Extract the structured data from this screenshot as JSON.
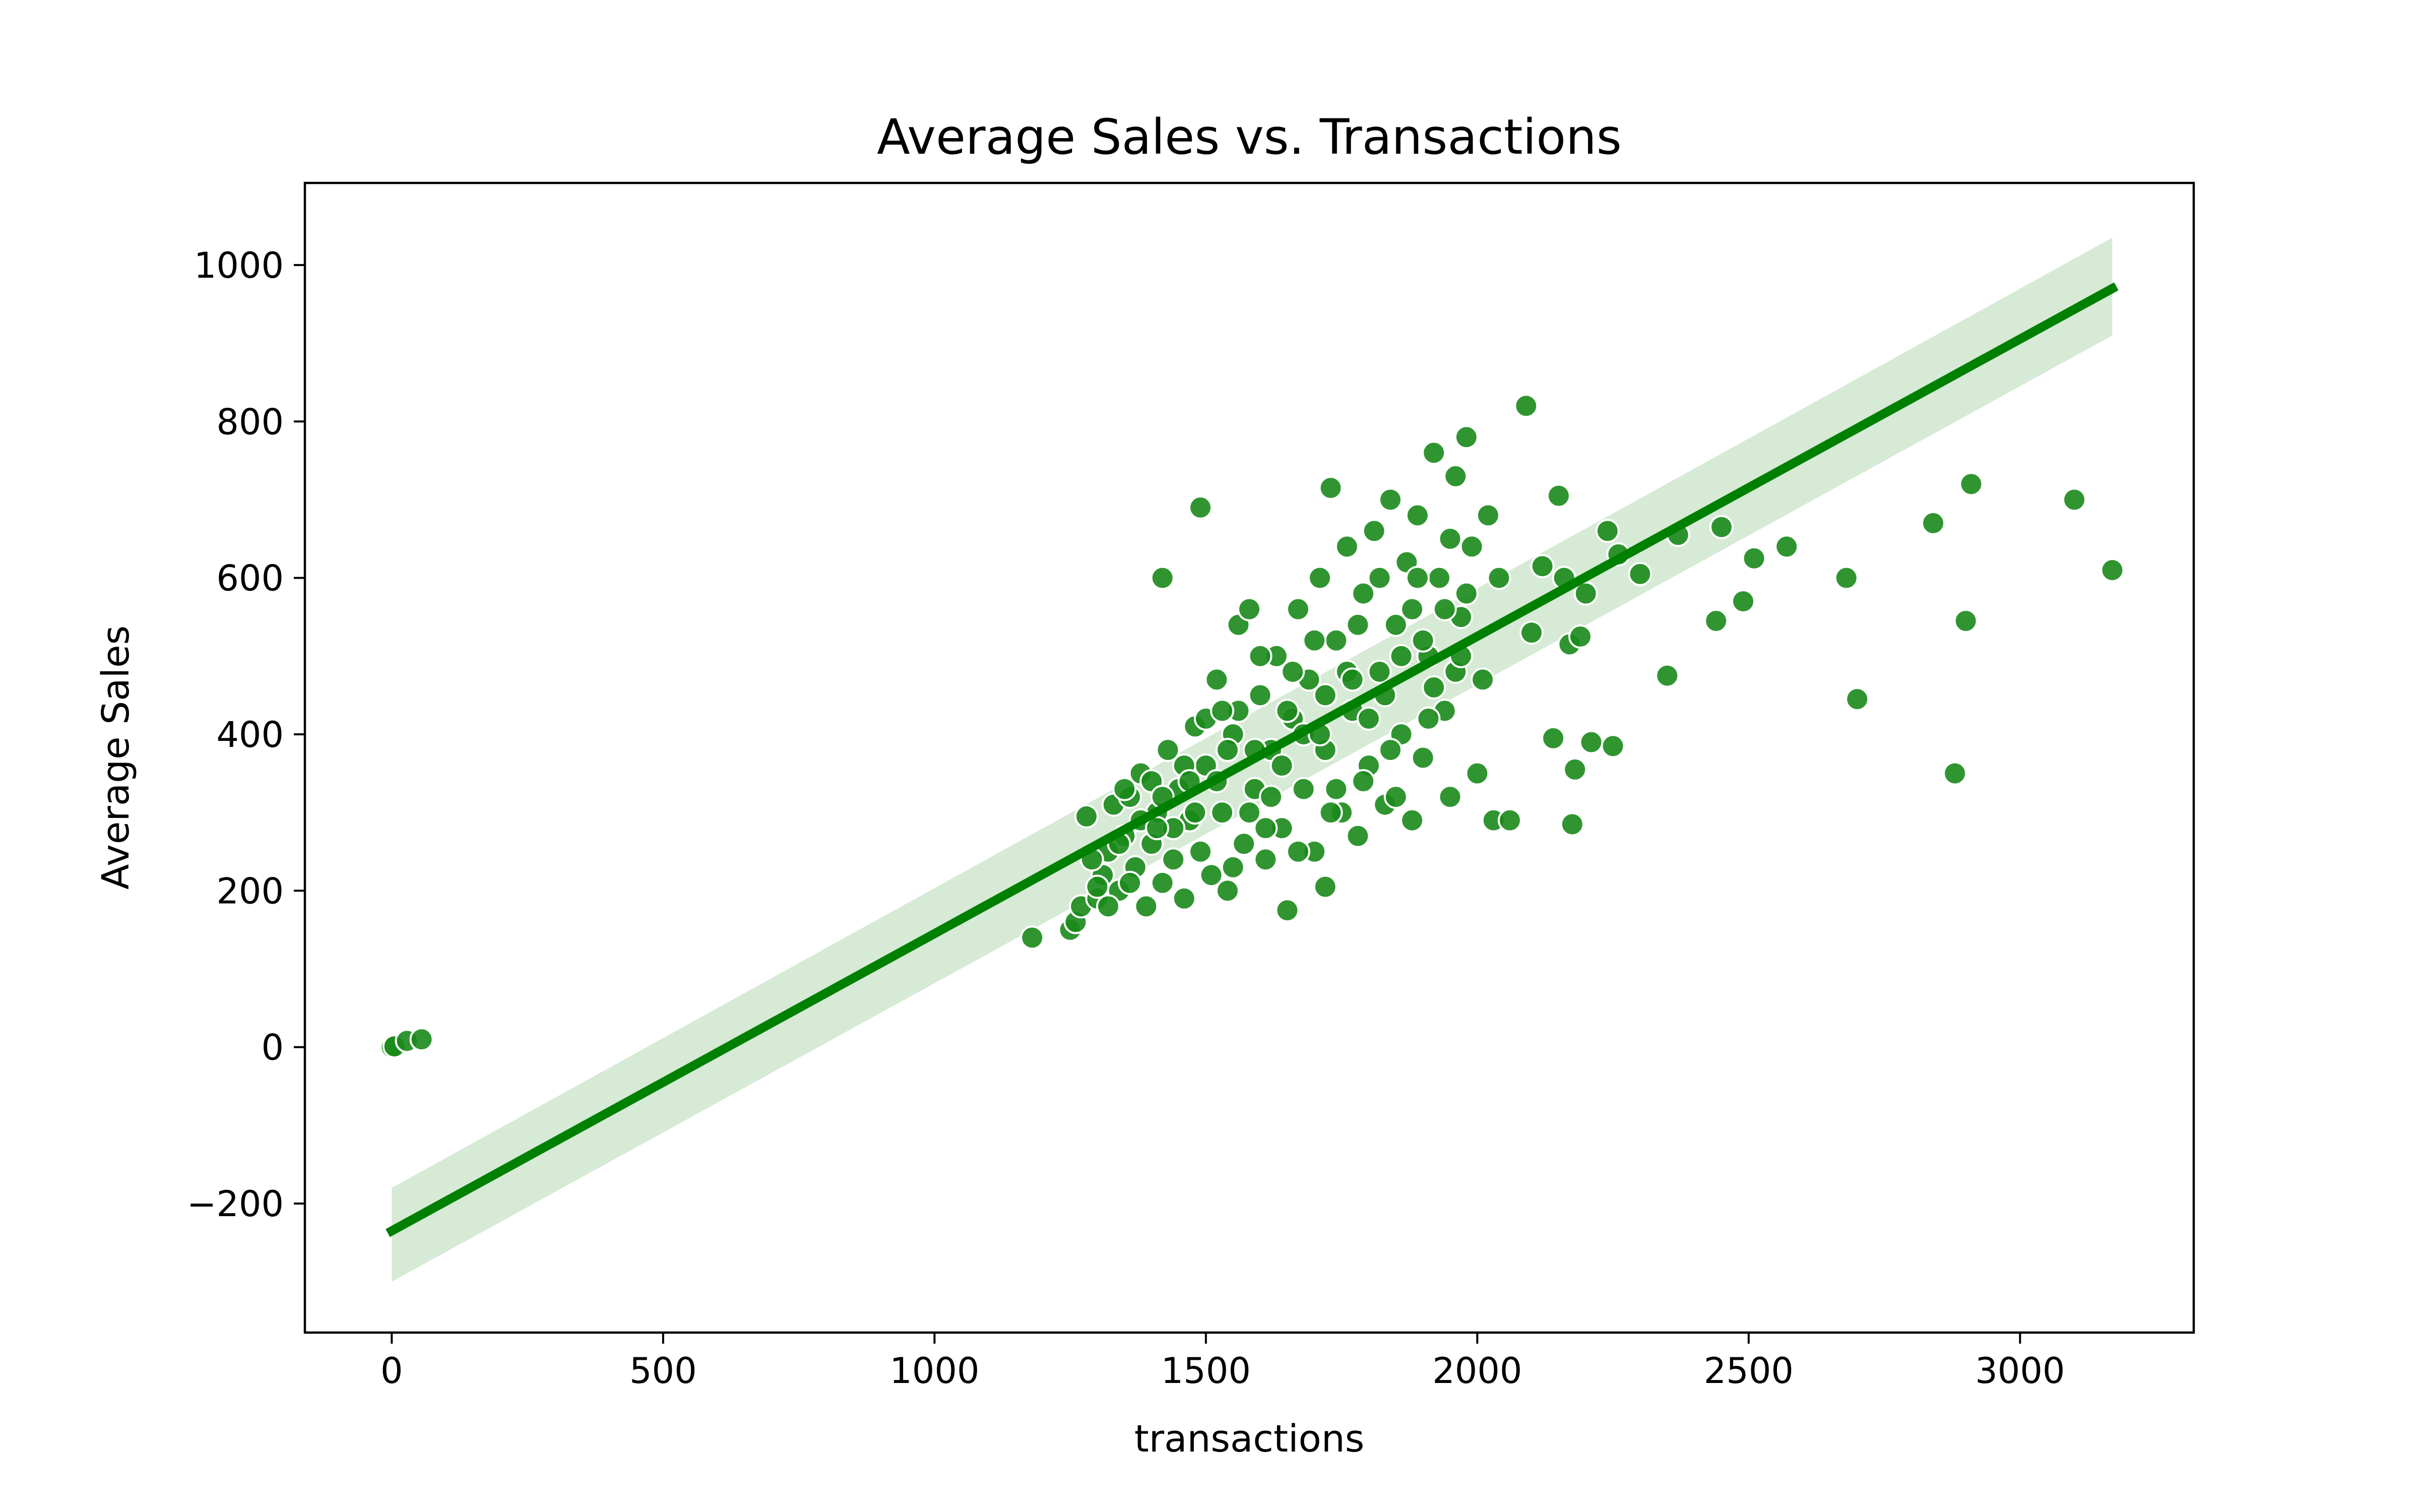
{
  "chart_data": {
    "type": "scatter",
    "title": "Average Sales vs. Transactions",
    "xlabel": "transactions",
    "ylabel": "Average Sales",
    "xlim": [
      -160,
      3320
    ],
    "ylim": [
      -365,
      1105
    ],
    "xticks": [
      0,
      500,
      1000,
      1500,
      2000,
      2500,
      3000
    ],
    "yticks": [
      -200,
      0,
      200,
      400,
      600,
      800,
      1000
    ],
    "xtick_labels": [
      "0",
      "500",
      "1000",
      "1500",
      "2000",
      "2500",
      "3000"
    ],
    "ytick_labels": [
      "−200",
      "0",
      "200",
      "400",
      "600",
      "800",
      "1000"
    ],
    "grid": false,
    "legend": "none",
    "colors": {
      "points": "#1a8a1a",
      "point_edge": "#ffffff",
      "line": "#008000",
      "band": "#d6ead6"
    },
    "regression": {
      "x": [
        0,
        3170
      ],
      "y": [
        -235,
        970
      ],
      "ci_upper": [
        -180,
        1035
      ],
      "ci_lower": [
        -300,
        910
      ]
    },
    "points": [
      [
        0,
        0
      ],
      [
        5,
        1
      ],
      [
        28,
        8
      ],
      [
        55,
        10
      ],
      [
        1180,
        140
      ],
      [
        1250,
        150
      ],
      [
        1260,
        160
      ],
      [
        1270,
        180
      ],
      [
        1280,
        295
      ],
      [
        1300,
        190
      ],
      [
        1310,
        220
      ],
      [
        1320,
        250
      ],
      [
        1330,
        310
      ],
      [
        1340,
        200
      ],
      [
        1350,
        270
      ],
      [
        1360,
        320
      ],
      [
        1370,
        230
      ],
      [
        1380,
        350
      ],
      [
        1390,
        180
      ],
      [
        1400,
        260
      ],
      [
        1410,
        300
      ],
      [
        1420,
        600
      ],
      [
        1420,
        210
      ],
      [
        1430,
        380
      ],
      [
        1440,
        240
      ],
      [
        1450,
        330
      ],
      [
        1460,
        190
      ],
      [
        1470,
        290
      ],
      [
        1480,
        410
      ],
      [
        1490,
        690
      ],
      [
        1490,
        250
      ],
      [
        1500,
        360
      ],
      [
        1510,
        220
      ],
      [
        1520,
        470
      ],
      [
        1530,
        300
      ],
      [
        1540,
        200
      ],
      [
        1550,
        400
      ],
      [
        1560,
        540
      ],
      [
        1570,
        260
      ],
      [
        1580,
        560
      ],
      [
        1590,
        330
      ],
      [
        1600,
        450
      ],
      [
        1610,
        240
      ],
      [
        1620,
        380
      ],
      [
        1630,
        500
      ],
      [
        1640,
        280
      ],
      [
        1650,
        175
      ],
      [
        1660,
        420
      ],
      [
        1670,
        560
      ],
      [
        1680,
        330
      ],
      [
        1690,
        470
      ],
      [
        1700,
        250
      ],
      [
        1710,
        600
      ],
      [
        1720,
        205
      ],
      [
        1720,
        380
      ],
      [
        1730,
        715
      ],
      [
        1740,
        520
      ],
      [
        1750,
        300
      ],
      [
        1760,
        640
      ],
      [
        1770,
        430
      ],
      [
        1780,
        270
      ],
      [
        1790,
        580
      ],
      [
        1800,
        360
      ],
      [
        1810,
        660
      ],
      [
        1820,
        480
      ],
      [
        1830,
        310
      ],
      [
        1840,
        700
      ],
      [
        1850,
        540
      ],
      [
        1860,
        400
      ],
      [
        1870,
        620
      ],
      [
        1880,
        290
      ],
      [
        1890,
        680
      ],
      [
        1900,
        370
      ],
      [
        1910,
        500
      ],
      [
        1920,
        760
      ],
      [
        1930,
        600
      ],
      [
        1940,
        430
      ],
      [
        1950,
        320
      ],
      [
        1960,
        730
      ],
      [
        1970,
        550
      ],
      [
        1980,
        780
      ],
      [
        1990,
        640
      ],
      [
        2000,
        350
      ],
      [
        2010,
        470
      ],
      [
        2020,
        680
      ],
      [
        2030,
        290
      ],
      [
        2040,
        600
      ],
      [
        2060,
        290
      ],
      [
        2090,
        820
      ],
      [
        2100,
        530
      ],
      [
        2120,
        615
      ],
      [
        2140,
        395
      ],
      [
        2150,
        705
      ],
      [
        2160,
        600
      ],
      [
        2170,
        515
      ],
      [
        2175,
        285
      ],
      [
        2180,
        355
      ],
      [
        2190,
        525
      ],
      [
        2200,
        580
      ],
      [
        2210,
        390
      ],
      [
        2240,
        660
      ],
      [
        2250,
        385
      ],
      [
        2260,
        630
      ],
      [
        2300,
        605
      ],
      [
        2350,
        475
      ],
      [
        2370,
        655
      ],
      [
        2440,
        545
      ],
      [
        2450,
        665
      ],
      [
        2490,
        570
      ],
      [
        2510,
        625
      ],
      [
        2570,
        640
      ],
      [
        2680,
        600
      ],
      [
        2700,
        445
      ],
      [
        2840,
        670
      ],
      [
        2880,
        350
      ],
      [
        2900,
        545
      ],
      [
        2910,
        720
      ],
      [
        3100,
        700
      ],
      [
        3170,
        610
      ],
      [
        1300,
        205
      ],
      [
        1320,
        180
      ],
      [
        1340,
        260
      ],
      [
        1360,
        210
      ],
      [
        1380,
        290
      ],
      [
        1400,
        340
      ],
      [
        1420,
        320
      ],
      [
        1440,
        280
      ],
      [
        1460,
        360
      ],
      [
        1480,
        300
      ],
      [
        1500,
        420
      ],
      [
        1520,
        340
      ],
      [
        1540,
        380
      ],
      [
        1560,
        430
      ],
      [
        1580,
        300
      ],
      [
        1600,
        500
      ],
      [
        1620,
        320
      ],
      [
        1640,
        360
      ],
      [
        1660,
        480
      ],
      [
        1680,
        400
      ],
      [
        1700,
        520
      ],
      [
        1720,
        450
      ],
      [
        1740,
        330
      ],
      [
        1760,
        480
      ],
      [
        1780,
        540
      ],
      [
        1800,
        420
      ],
      [
        1820,
        600
      ],
      [
        1840,
        380
      ],
      [
        1860,
        500
      ],
      [
        1880,
        560
      ],
      [
        1900,
        520
      ],
      [
        1920,
        460
      ],
      [
        1940,
        560
      ],
      [
        1960,
        480
      ],
      [
        1980,
        580
      ],
      [
        1290,
        240
      ],
      [
        1350,
        330
      ],
      [
        1410,
        280
      ],
      [
        1470,
        340
      ],
      [
        1530,
        430
      ],
      [
        1590,
        380
      ],
      [
        1650,
        430
      ],
      [
        1710,
        400
      ],
      [
        1770,
        470
      ],
      [
        1830,
        450
      ],
      [
        1890,
        600
      ],
      [
        1950,
        650
      ],
      [
        1550,
        230
      ],
      [
        1610,
        280
      ],
      [
        1670,
        250
      ],
      [
        1730,
        300
      ],
      [
        1790,
        340
      ],
      [
        1850,
        320
      ],
      [
        1910,
        420
      ],
      [
        1970,
        500
      ]
    ]
  }
}
